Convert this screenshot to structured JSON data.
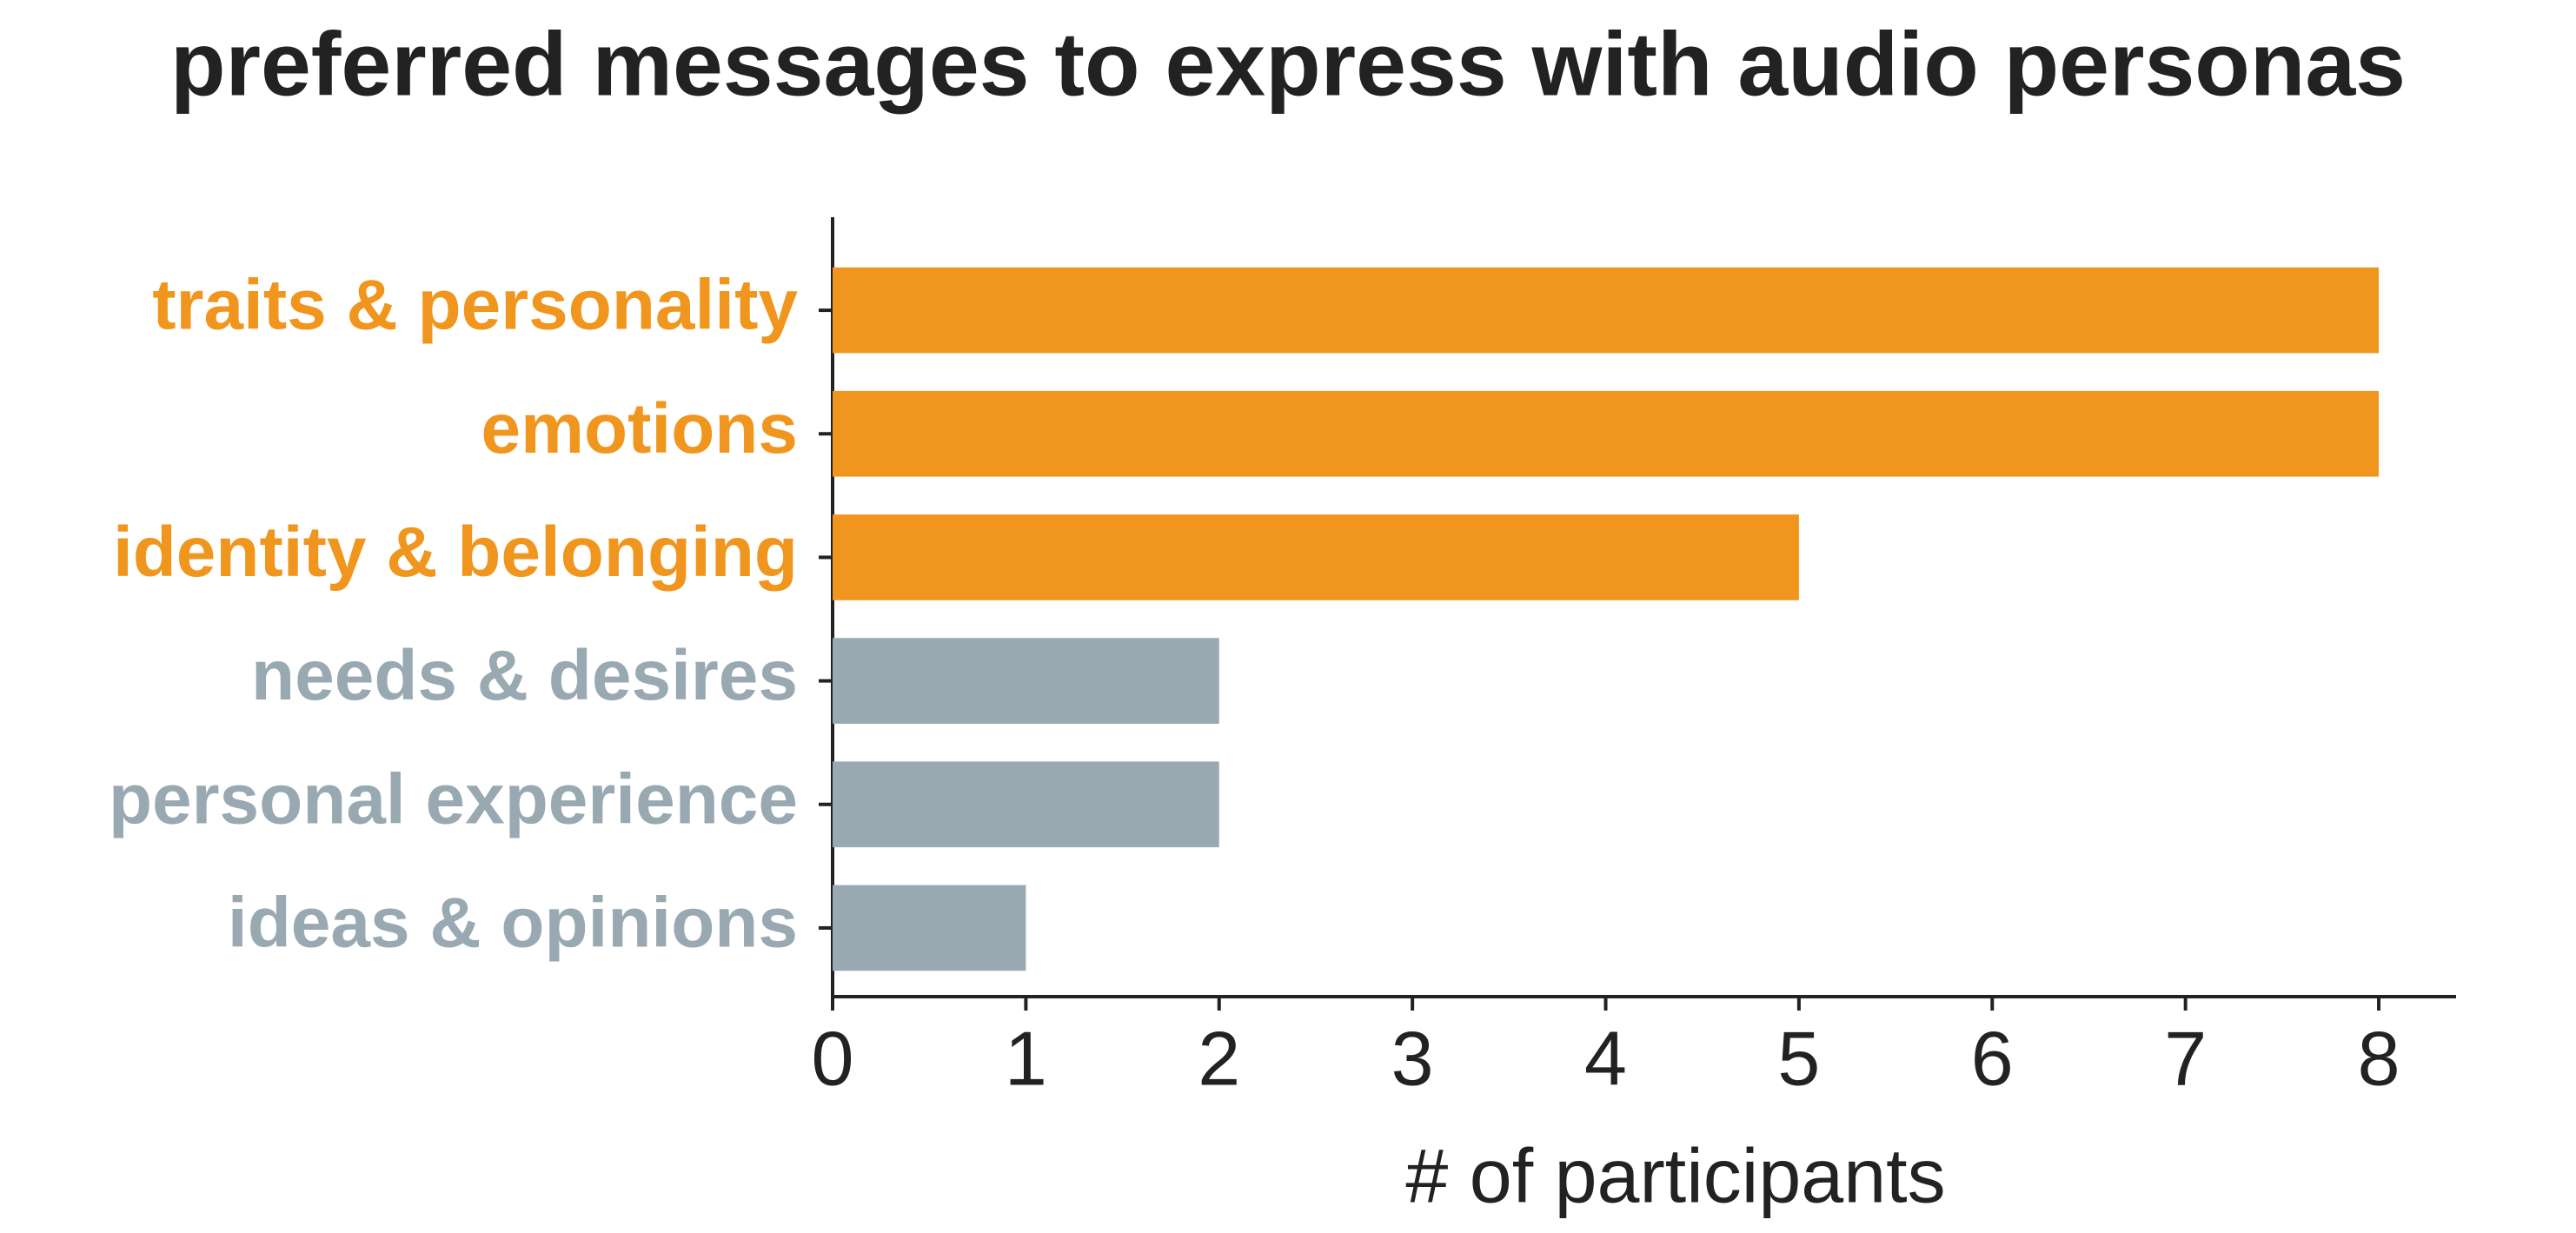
{
  "chart_data": {
    "type": "bar",
    "orientation": "horizontal",
    "title": "preferred messages to express with audio personas",
    "x_label": "# of participants",
    "categories": [
      "traits & personality",
      "emotions",
      "identity & belonging",
      "needs & desires",
      "personal experience",
      "ideas & opinions"
    ],
    "values": [
      8,
      8,
      5,
      2,
      2,
      1
    ],
    "colors": [
      "#f0961e",
      "#f0961e",
      "#f0961e",
      "#98a9b2",
      "#98a9b2",
      "#98a9b2"
    ],
    "xlim": [
      0,
      8.4
    ],
    "xticks": [
      0,
      1,
      2,
      3,
      4,
      5,
      6,
      7,
      8
    ],
    "grid": false
  }
}
